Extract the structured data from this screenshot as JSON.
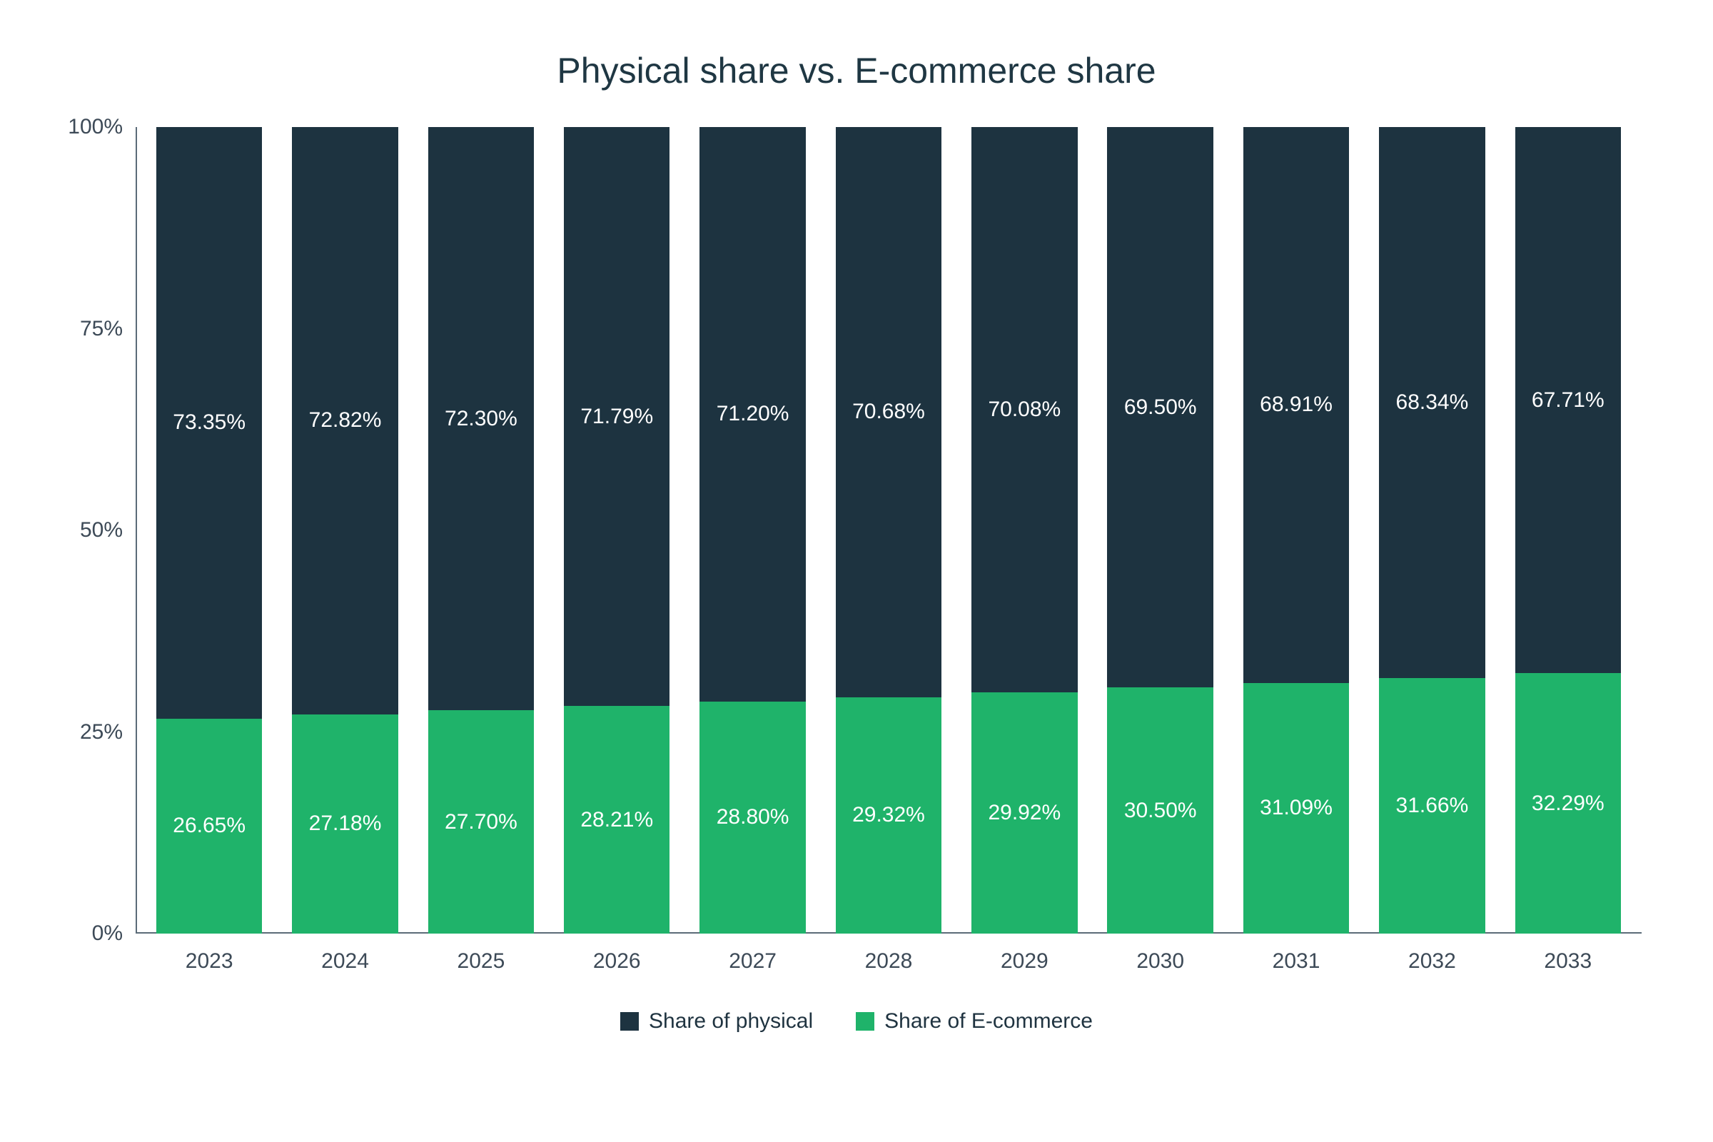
{
  "chart": {
    "type": "stacked-bar-100pct",
    "title": "Physical share vs. E-commerce share",
    "title_fontsize": 50,
    "title_color": "#1f3743",
    "background_color": "#ffffff",
    "categories": [
      "2023",
      "2024",
      "2025",
      "2026",
      "2027",
      "2028",
      "2029",
      "2030",
      "2031",
      "2032",
      "2033"
    ],
    "series": [
      {
        "name": "Share of physical",
        "color": "#1d3340",
        "values": [
          73.35,
          72.82,
          72.3,
          71.79,
          71.2,
          70.68,
          70.08,
          69.5,
          68.91,
          68.34,
          67.71
        ],
        "labels": [
          "73.35%",
          "72.82%",
          "72.30%",
          "71.79%",
          "71.20%",
          "70.68%",
          "70.08%",
          "69.50%",
          "68.91%",
          "68.34%",
          "67.71%"
        ]
      },
      {
        "name": "Share of E-commerce",
        "color": "#1fb36a",
        "values": [
          26.65,
          27.18,
          27.7,
          28.21,
          28.8,
          29.32,
          29.92,
          30.5,
          31.09,
          31.66,
          32.29
        ],
        "labels": [
          "26.65%",
          "27.18%",
          "27.70%",
          "28.21%",
          "28.80%",
          "29.32%",
          "29.92%",
          "30.50%",
          "31.09%",
          "31.66%",
          "32.29%"
        ]
      }
    ],
    "segment_label_color_top": "#ffffff",
    "segment_label_color_bottom": "#ffffff",
    "segment_label_fontsize": 30,
    "ylim": [
      0,
      100
    ],
    "yticks": [
      0,
      25,
      50,
      75,
      100
    ],
    "ytick_labels": [
      "0%",
      "25%",
      "50%",
      "75%",
      "100%"
    ],
    "axis_color": "#5b6b78",
    "axis_width": 2,
    "axis_label_color": "#3d4a57",
    "axis_label_fontsize": 30,
    "bar_width_ratio": 0.78,
    "legend": {
      "position": "bottom-center",
      "fontsize": 30,
      "text_color": "#1f3340",
      "items": [
        {
          "label": "Share of physical",
          "color": "#1d3340"
        },
        {
          "label": "Share of E-commerce",
          "color": "#1fb36a"
        }
      ]
    }
  }
}
